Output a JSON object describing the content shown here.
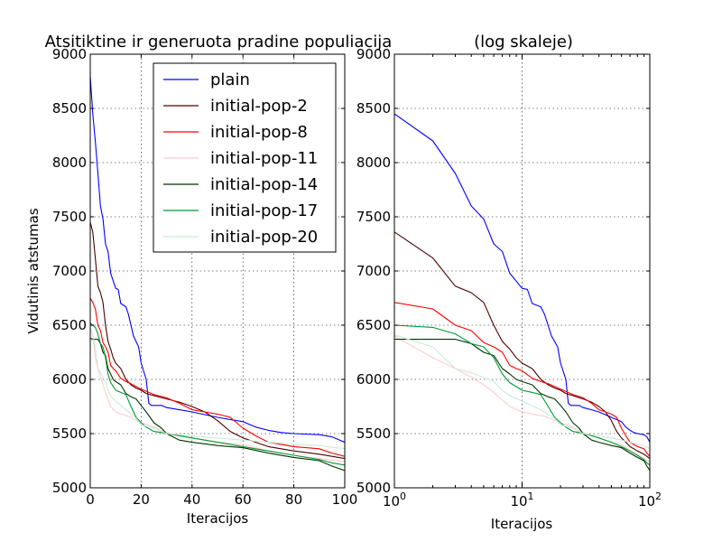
{
  "chart_data": [
    {
      "type": "line",
      "title": "Atsitiktine ir generuota pradine populiacija",
      "xlabel": "Iteracijos",
      "ylabel": "Vidutinis atstumas",
      "xlim": [
        0,
        100
      ],
      "ylim": [
        5000,
        9000
      ],
      "xscale": "linear",
      "xticks": [
        "0",
        "20",
        "40",
        "60",
        "80",
        "100"
      ],
      "yticks": [
        "5000",
        "5500",
        "6000",
        "6500",
        "7000",
        "7500",
        "8000",
        "8500",
        "9000"
      ],
      "grid": true,
      "legend": "top-right",
      "series": [
        {
          "name": "plain",
          "color": "#0000ff",
          "points": [
            [
              0,
              8800
            ],
            [
              1,
              8450
            ],
            [
              2,
              8200
            ],
            [
              3,
              7900
            ],
            [
              4,
              7600
            ],
            [
              5,
              7480
            ],
            [
              6,
              7250
            ],
            [
              7,
              7180
            ],
            [
              8,
              6980
            ],
            [
              10,
              6840
            ],
            [
              11,
              6830
            ],
            [
              12,
              6700
            ],
            [
              14,
              6670
            ],
            [
              15,
              6600
            ],
            [
              17,
              6400
            ],
            [
              19,
              6300
            ],
            [
              20,
              6150
            ],
            [
              22,
              6000
            ],
            [
              23,
              5780
            ],
            [
              24,
              5760
            ],
            [
              26,
              5760
            ],
            [
              28,
              5760
            ],
            [
              30,
              5740
            ],
            [
              35,
              5720
            ],
            [
              40,
              5700
            ],
            [
              50,
              5650
            ],
            [
              60,
              5610
            ],
            [
              65,
              5560
            ],
            [
              70,
              5530
            ],
            [
              75,
              5510
            ],
            [
              80,
              5500
            ],
            [
              90,
              5490
            ],
            [
              95,
              5470
            ],
            [
              98,
              5440
            ],
            [
              100,
              5420
            ]
          ]
        },
        {
          "name": "initial-pop-2",
          "color": "#4d0000",
          "points": [
            [
              0,
              7450
            ],
            [
              1,
              7360
            ],
            [
              2,
              7120
            ],
            [
              3,
              6860
            ],
            [
              4,
              6800
            ],
            [
              5,
              6710
            ],
            [
              6,
              6500
            ],
            [
              7,
              6350
            ],
            [
              8,
              6280
            ],
            [
              9,
              6200
            ],
            [
              10,
              6150
            ],
            [
              12,
              6100
            ],
            [
              14,
              6000
            ],
            [
              16,
              5950
            ],
            [
              18,
              5920
            ],
            [
              20,
              5900
            ],
            [
              22,
              5870
            ],
            [
              25,
              5850
            ],
            [
              30,
              5820
            ],
            [
              35,
              5790
            ],
            [
              40,
              5750
            ],
            [
              45,
              5700
            ],
            [
              50,
              5620
            ],
            [
              55,
              5520
            ],
            [
              60,
              5460
            ],
            [
              65,
              5420
            ],
            [
              70,
              5380
            ],
            [
              80,
              5340
            ],
            [
              90,
              5310
            ],
            [
              100,
              5270
            ]
          ]
        },
        {
          "name": "initial-pop-8",
          "color": "#ff0000",
          "points": [
            [
              0,
              6750
            ],
            [
              1,
              6710
            ],
            [
              2,
              6650
            ],
            [
              3,
              6500
            ],
            [
              4,
              6450
            ],
            [
              5,
              6340
            ],
            [
              6,
              6300
            ],
            [
              7,
              6250
            ],
            [
              8,
              6130
            ],
            [
              9,
              6100
            ],
            [
              10,
              6080
            ],
            [
              12,
              6010
            ],
            [
              14,
              5980
            ],
            [
              16,
              5960
            ],
            [
              20,
              5910
            ],
            [
              25,
              5860
            ],
            [
              30,
              5830
            ],
            [
              35,
              5780
            ],
            [
              40,
              5720
            ],
            [
              45,
              5700
            ],
            [
              50,
              5680
            ],
            [
              55,
              5650
            ],
            [
              60,
              5550
            ],
            [
              65,
              5480
            ],
            [
              70,
              5420
            ],
            [
              80,
              5380
            ],
            [
              90,
              5360
            ],
            [
              95,
              5320
            ],
            [
              100,
              5290
            ]
          ]
        },
        {
          "name": "initial-pop-11",
          "color": "#ffcccc",
          "points": [
            [
              0,
              6480
            ],
            [
              1,
              6400
            ],
            [
              2,
              6200
            ],
            [
              3,
              6100
            ],
            [
              4,
              6020
            ],
            [
              5,
              5950
            ],
            [
              6,
              5880
            ],
            [
              8,
              5750
            ],
            [
              10,
              5700
            ],
            [
              12,
              5680
            ],
            [
              15,
              5660
            ],
            [
              20,
              5600
            ],
            [
              25,
              5560
            ],
            [
              30,
              5510
            ],
            [
              40,
              5460
            ],
            [
              50,
              5420
            ],
            [
              60,
              5400
            ],
            [
              70,
              5340
            ],
            [
              80,
              5300
            ],
            [
              90,
              5270
            ],
            [
              100,
              5240
            ]
          ]
        },
        {
          "name": "initial-pop-14",
          "color": "#003300",
          "points": [
            [
              0,
              6380
            ],
            [
              1,
              6370
            ],
            [
              2,
              6370
            ],
            [
              3,
              6370
            ],
            [
              4,
              6330
            ],
            [
              5,
              6250
            ],
            [
              6,
              6220
            ],
            [
              7,
              6100
            ],
            [
              8,
              6050
            ],
            [
              9,
              6000
            ],
            [
              10,
              5980
            ],
            [
              12,
              5950
            ],
            [
              14,
              5870
            ],
            [
              16,
              5840
            ],
            [
              18,
              5820
            ],
            [
              20,
              5760
            ],
            [
              22,
              5700
            ],
            [
              25,
              5600
            ],
            [
              28,
              5550
            ],
            [
              30,
              5500
            ],
            [
              35,
              5440
            ],
            [
              40,
              5420
            ],
            [
              50,
              5390
            ],
            [
              60,
              5370
            ],
            [
              70,
              5320
            ],
            [
              80,
              5280
            ],
            [
              90,
              5250
            ],
            [
              95,
              5200
            ],
            [
              100,
              5160
            ]
          ]
        },
        {
          "name": "initial-pop-17",
          "color": "#009933",
          "points": [
            [
              0,
              6520
            ],
            [
              1,
              6500
            ],
            [
              2,
              6480
            ],
            [
              3,
              6420
            ],
            [
              4,
              6330
            ],
            [
              5,
              6300
            ],
            [
              6,
              6200
            ],
            [
              7,
              6050
            ],
            [
              8,
              5970
            ],
            [
              10,
              5900
            ],
            [
              12,
              5880
            ],
            [
              14,
              5860
            ],
            [
              16,
              5750
            ],
            [
              18,
              5650
            ],
            [
              20,
              5600
            ],
            [
              22,
              5560
            ],
            [
              25,
              5520
            ],
            [
              28,
              5510
            ],
            [
              30,
              5500
            ],
            [
              35,
              5480
            ],
            [
              40,
              5460
            ],
            [
              50,
              5420
            ],
            [
              60,
              5380
            ],
            [
              70,
              5340
            ],
            [
              80,
              5300
            ],
            [
              90,
              5260
            ],
            [
              95,
              5230
            ],
            [
              100,
              5210
            ]
          ]
        },
        {
          "name": "initial-pop-20",
          "color": "#c8ecd6",
          "points": [
            [
              0,
              6470
            ],
            [
              1,
              6410
            ],
            [
              2,
              6300
            ],
            [
              3,
              6100
            ],
            [
              4,
              6060
            ],
            [
              5,
              6020
            ],
            [
              6,
              5980
            ],
            [
              7,
              5900
            ],
            [
              8,
              5850
            ],
            [
              10,
              5800
            ],
            [
              12,
              5760
            ],
            [
              15,
              5700
            ],
            [
              18,
              5640
            ],
            [
              20,
              5580
            ],
            [
              25,
              5550
            ],
            [
              30,
              5500
            ],
            [
              40,
              5480
            ],
            [
              50,
              5460
            ],
            [
              60,
              5440
            ],
            [
              70,
              5420
            ],
            [
              80,
              5400
            ],
            [
              90,
              5390
            ],
            [
              100,
              5360
            ]
          ]
        }
      ]
    },
    {
      "type": "line",
      "title": "(log skaleje)",
      "xlabel": "Iteracijos",
      "ylabel": "",
      "xlim": [
        1,
        100
      ],
      "ylim": [
        5000,
        9000
      ],
      "xscale": "log",
      "xticks": [
        {
          "value": 1,
          "base": "10",
          "exp": "0"
        },
        {
          "value": 10,
          "base": "10",
          "exp": "1"
        },
        {
          "value": 100,
          "base": "10",
          "exp": "2"
        }
      ],
      "yticks": [
        "5000",
        "5500",
        "6000",
        "6500",
        "7000",
        "7500",
        "8000",
        "8500",
        "9000"
      ],
      "grid": true,
      "series_same_as_left": true
    }
  ]
}
